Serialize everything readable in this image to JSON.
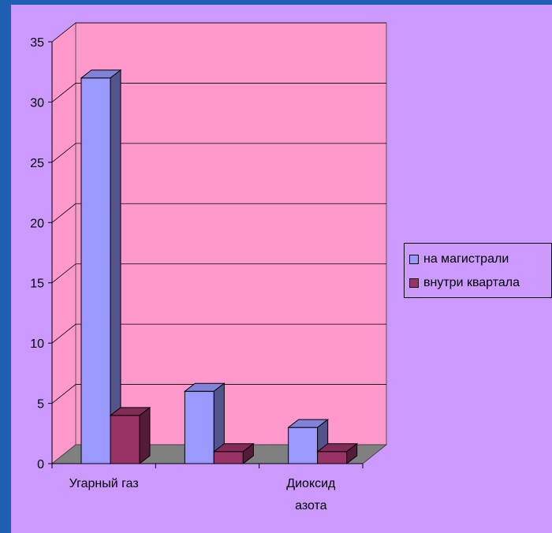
{
  "chart_data": {
    "type": "bar",
    "style": "3d-clustered-column",
    "categories": [
      "Угарный газ",
      "",
      "Диоксид\nазота"
    ],
    "series": [
      {
        "name": "на магистрали",
        "values": [
          32,
          6,
          3
        ],
        "color": "#9999ff"
      },
      {
        "name": "внутри квартала",
        "values": [
          4,
          1,
          1
        ],
        "color": "#993366"
      }
    ],
    "yticks": [
      0,
      5,
      10,
      15,
      20,
      25,
      30,
      35
    ],
    "ylim": [
      0,
      35
    ],
    "grid": true,
    "legend_position": "right",
    "colors": {
      "background": "#1e5fb4",
      "chart_area": "#cc99ff",
      "plot_wall": "#ff99cc",
      "floor": "#808080"
    }
  }
}
